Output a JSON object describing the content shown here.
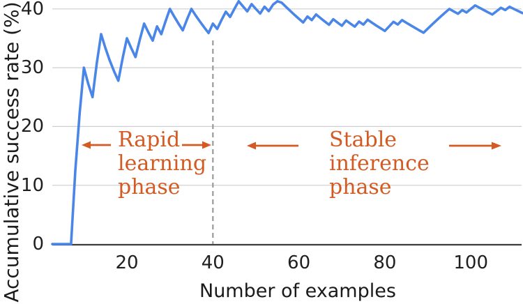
{
  "chart_data": {
    "type": "line",
    "title": "",
    "xlabel": "Number of examples",
    "ylabel": "Accumulative success rate (%)",
    "x_ticks": [
      20,
      40,
      60,
      80,
      100
    ],
    "y_ticks": [
      0,
      10,
      20,
      30,
      40
    ],
    "xlim": [
      2.6,
      112
    ],
    "ylim": [
      0,
      41.5
    ],
    "grid": "horizontal-only",
    "legend": "none",
    "line_color": "#4a86e8",
    "axis_color": "#3c3c3c",
    "grid_color": "#cfcfcf",
    "divider_color": "#9a9a9a",
    "annotation_color": "#d35a22",
    "divider_x": 40,
    "series": [
      {
        "name": "Accumulative success rate",
        "points": [
          [
            3,
            0
          ],
          [
            4,
            0
          ],
          [
            5,
            0
          ],
          [
            6,
            0
          ],
          [
            7,
            0
          ],
          [
            8,
            12.5
          ],
          [
            9,
            22.22
          ],
          [
            10,
            30
          ],
          [
            11,
            27.27
          ],
          [
            12,
            25
          ],
          [
            13,
            30.77
          ],
          [
            14,
            35.71
          ],
          [
            15,
            33.33
          ],
          [
            16,
            31.25
          ],
          [
            17,
            29.41
          ],
          [
            18,
            27.78
          ],
          [
            19,
            31.58
          ],
          [
            20,
            35
          ],
          [
            21,
            33.33
          ],
          [
            22,
            31.82
          ],
          [
            23,
            34.78
          ],
          [
            24,
            37.5
          ],
          [
            25,
            36
          ],
          [
            26,
            34.62
          ],
          [
            27,
            37.04
          ],
          [
            28,
            35.71
          ],
          [
            29,
            37.93
          ],
          [
            30,
            40
          ],
          [
            31,
            38.71
          ],
          [
            32,
            37.5
          ],
          [
            33,
            36.36
          ],
          [
            34,
            38.24
          ],
          [
            35,
            40
          ],
          [
            36,
            38.89
          ],
          [
            37,
            37.84
          ],
          [
            38,
            36.84
          ],
          [
            39,
            35.9
          ],
          [
            40,
            37.5
          ],
          [
            41,
            36.59
          ],
          [
            42,
            38.1
          ],
          [
            43,
            39.53
          ],
          [
            44,
            38.64
          ],
          [
            45,
            40
          ],
          [
            46,
            41.3
          ],
          [
            47,
            40.43
          ],
          [
            48,
            39.58
          ],
          [
            49,
            40.82
          ],
          [
            50,
            40
          ],
          [
            51,
            39.22
          ],
          [
            52,
            40.38
          ],
          [
            53,
            39.62
          ],
          [
            54,
            40.74
          ],
          [
            55,
            41.3
          ],
          [
            56,
            41.07
          ],
          [
            57,
            40.35
          ],
          [
            58,
            39.66
          ],
          [
            59,
            38.98
          ],
          [
            60,
            38.33
          ],
          [
            61,
            37.7
          ],
          [
            62,
            38.71
          ],
          [
            63,
            38.1
          ],
          [
            64,
            39.06
          ],
          [
            65,
            38.46
          ],
          [
            66,
            37.88
          ],
          [
            67,
            37.31
          ],
          [
            68,
            38.24
          ],
          [
            69,
            37.68
          ],
          [
            70,
            37.14
          ],
          [
            71,
            38.03
          ],
          [
            72,
            37.5
          ],
          [
            73,
            36.99
          ],
          [
            74,
            37.84
          ],
          [
            75,
            37.33
          ],
          [
            76,
            38.16
          ],
          [
            77,
            37.66
          ],
          [
            78,
            37.18
          ],
          [
            79,
            36.71
          ],
          [
            80,
            36.25
          ],
          [
            81,
            37.04
          ],
          [
            82,
            37.8
          ],
          [
            83,
            37.35
          ],
          [
            84,
            38.1
          ],
          [
            85,
            37.65
          ],
          [
            86,
            37.21
          ],
          [
            87,
            36.78
          ],
          [
            88,
            36.36
          ],
          [
            89,
            35.96
          ],
          [
            90,
            36.67
          ],
          [
            91,
            37.36
          ],
          [
            92,
            38.04
          ],
          [
            93,
            38.71
          ],
          [
            94,
            39.36
          ],
          [
            95,
            40
          ],
          [
            96,
            39.58
          ],
          [
            97,
            39.18
          ],
          [
            98,
            39.8
          ],
          [
            99,
            39.39
          ],
          [
            100,
            40
          ],
          [
            101,
            40.59
          ],
          [
            102,
            40.2
          ],
          [
            103,
            39.81
          ],
          [
            104,
            39.42
          ],
          [
            105,
            39.05
          ],
          [
            106,
            39.62
          ],
          [
            107,
            40.19
          ],
          [
            108,
            39.81
          ],
          [
            109,
            40.37
          ],
          [
            110,
            40
          ],
          [
            111,
            39.64
          ],
          [
            112,
            39.29
          ]
        ]
      }
    ],
    "annotations": [
      {
        "id": "rapid",
        "lines": [
          "Rapid",
          "learning",
          "phase"
        ]
      },
      {
        "id": "stable",
        "lines": [
          "Stable",
          "inference",
          "phase"
        ]
      }
    ]
  }
}
